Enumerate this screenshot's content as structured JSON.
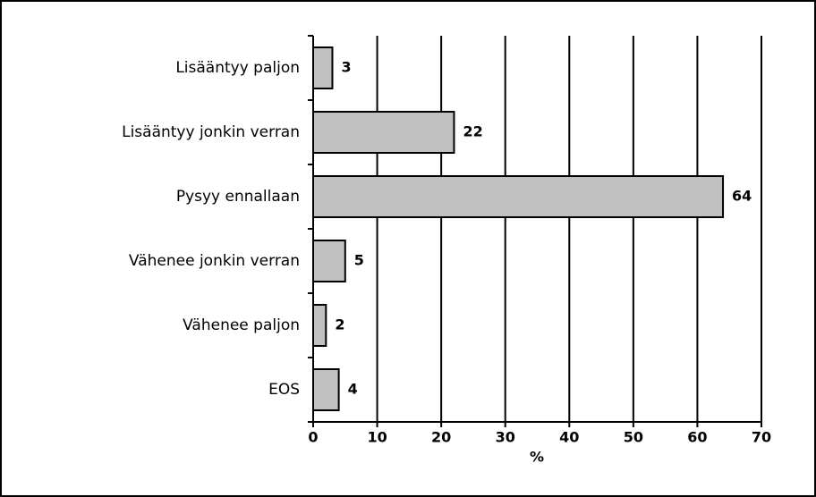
{
  "chart_data": {
    "type": "bar",
    "orientation": "horizontal",
    "categories": [
      "Lisääntyy paljon",
      "Lisääntyy jonkin verran",
      "Pysyy ennallaan",
      "Vähenee jonkin verran",
      "Vähenee paljon",
      "EOS"
    ],
    "values": [
      3,
      22,
      64,
      5,
      2,
      4
    ],
    "color": "#c0c0c0",
    "xlabel": "%",
    "xlim": [
      0,
      70
    ],
    "xticks": [
      0,
      10,
      20,
      30,
      40,
      50,
      60,
      70
    ],
    "grid": true
  }
}
